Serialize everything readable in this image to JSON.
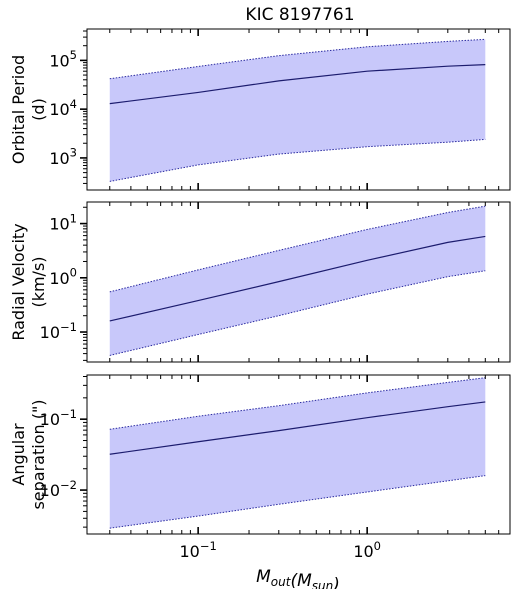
{
  "title": "KIC 8197761",
  "xlabel": "M_out(M_sun)",
  "x_tick_labels": [
    {
      "value": 0.1,
      "base": "10",
      "exp": "−1"
    },
    {
      "value": 1,
      "base": "10",
      "exp": "0"
    }
  ],
  "colors": {
    "band": "#c8c8fa",
    "band_edge": "#2a2aa0",
    "line": "#1c1c6e"
  },
  "chart_data": [
    {
      "type": "area",
      "title": "KIC 8197761",
      "ylabel_lines": [
        "Orbital Period",
        "(d)"
      ],
      "xscale": "log",
      "yscale": "log",
      "xlim": [
        0.022,
        7.0
      ],
      "ylim": [
        220,
        440000
      ],
      "y_tick_labels": [
        {
          "value": 1000,
          "base": "10",
          "exp": "3"
        },
        {
          "value": 10000,
          "base": "10",
          "exp": "4"
        },
        {
          "value": 100000,
          "base": "10",
          "exp": "5"
        }
      ],
      "x": [
        0.03,
        0.1,
        0.3,
        1,
        3,
        5
      ],
      "series": [
        {
          "role": "central",
          "values": [
            13000,
            22000,
            38000,
            60000,
            76000,
            82000
          ]
        },
        {
          "role": "upper",
          "values": [
            42000,
            75000,
            125000,
            190000,
            245000,
            270000
          ]
        },
        {
          "role": "lower",
          "values": [
            330,
            720,
            1200,
            1700,
            2100,
            2400
          ]
        }
      ]
    },
    {
      "type": "area",
      "ylabel_lines": [
        "Radial Velocity",
        "(km/s)"
      ],
      "xscale": "log",
      "yscale": "log",
      "xlim": [
        0.022,
        7.0
      ],
      "ylim": [
        0.028,
        25
      ],
      "y_tick_labels": [
        {
          "value": 0.1,
          "base": "10",
          "exp": "−1"
        },
        {
          "value": 1,
          "base": "10",
          "exp": "0"
        },
        {
          "value": 10,
          "base": "10",
          "exp": "1"
        }
      ],
      "x": [
        0.03,
        0.1,
        0.3,
        1,
        3,
        5
      ],
      "series": [
        {
          "role": "central",
          "values": [
            0.16,
            0.38,
            0.85,
            2.1,
            4.5,
            5.8
          ]
        },
        {
          "role": "upper",
          "values": [
            0.55,
            1.4,
            3.2,
            7.8,
            16,
            21
          ]
        },
        {
          "role": "lower",
          "values": [
            0.037,
            0.09,
            0.2,
            0.5,
            1.05,
            1.35
          ]
        }
      ]
    },
    {
      "type": "area",
      "ylabel_lines": [
        "Angular",
        "separation (\")"
      ],
      "xscale": "log",
      "yscale": "log",
      "xlim": [
        0.022,
        7.0
      ],
      "ylim": [
        0.0024,
        0.42
      ],
      "y_tick_labels": [
        {
          "value": 0.01,
          "base": "10",
          "exp": "−2"
        },
        {
          "value": 0.1,
          "base": "10",
          "exp": "−1"
        }
      ],
      "x": [
        0.03,
        0.1,
        0.3,
        1,
        3,
        5
      ],
      "series": [
        {
          "role": "central",
          "values": [
            0.032,
            0.048,
            0.069,
            0.105,
            0.15,
            0.175
          ]
        },
        {
          "role": "upper",
          "values": [
            0.072,
            0.11,
            0.155,
            0.235,
            0.33,
            0.385
          ]
        },
        {
          "role": "lower",
          "values": [
            0.0029,
            0.0043,
            0.0063,
            0.0094,
            0.0135,
            0.016
          ]
        }
      ]
    }
  ]
}
